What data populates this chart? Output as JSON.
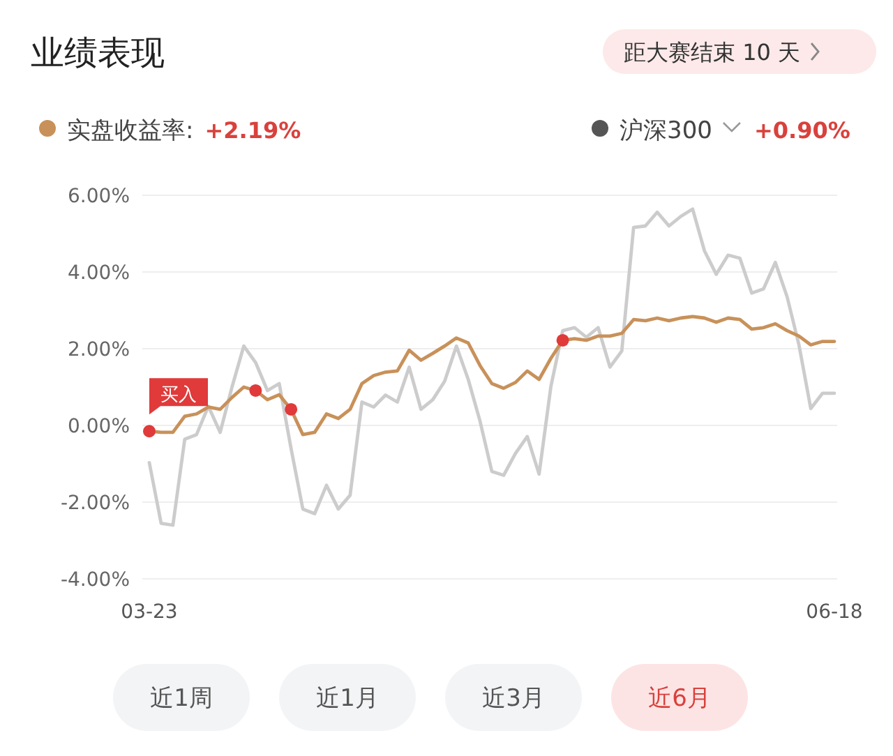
{
  "chart_data": {
    "type": "line",
    "title": "业绩表现",
    "categories": [
      "03-23",
      null,
      null,
      null,
      null,
      null,
      null,
      null,
      null,
      null,
      null,
      null,
      null,
      null,
      null,
      null,
      null,
      null,
      null,
      null,
      null,
      null,
      null,
      null,
      null,
      null,
      null,
      null,
      null,
      null,
      null,
      null,
      null,
      null,
      null,
      null,
      null,
      null,
      null,
      null,
      null,
      null,
      null,
      null,
      null,
      null,
      null,
      null,
      null,
      null,
      null,
      null,
      null,
      null,
      null,
      null,
      null,
      null,
      "06-18"
    ],
    "series": [
      {
        "name": "实盘收益率:",
        "color": "#c8915a",
        "values": [
          -0.15,
          -0.18,
          -0.18,
          0.24,
          0.3,
          0.48,
          0.42,
          0.73,
          1.0,
          0.91,
          0.67,
          0.8,
          0.42,
          -0.24,
          -0.18,
          0.3,
          0.18,
          0.42,
          1.09,
          1.3,
          1.39,
          1.42,
          1.96,
          1.7,
          1.88,
          2.07,
          2.28,
          2.15,
          1.56,
          1.09,
          0.97,
          1.12,
          1.42,
          1.2,
          1.75,
          2.22,
          2.26,
          2.22,
          2.33,
          2.33,
          2.4,
          2.76,
          2.73,
          2.8,
          2.73,
          2.8,
          2.84,
          2.8,
          2.69,
          2.8,
          2.76,
          2.51,
          2.55,
          2.65,
          2.47,
          2.33,
          2.1,
          2.19,
          2.19
        ]
      },
      {
        "name": "沪深300",
        "color": "#cccccc",
        "values": [
          -0.97,
          -2.55,
          -2.6,
          -0.36,
          -0.24,
          0.5,
          -0.18,
          1.0,
          2.07,
          1.64,
          0.91,
          1.09,
          -0.6,
          -2.18,
          -2.3,
          -1.56,
          -2.18,
          -1.82,
          0.61,
          0.48,
          0.79,
          0.61,
          1.52,
          0.42,
          0.67,
          1.15,
          2.07,
          1.2,
          0.11,
          -1.2,
          -1.3,
          -0.73,
          -0.29,
          -1.27,
          1.02,
          2.47,
          2.55,
          2.3,
          2.55,
          1.52,
          1.94,
          5.16,
          5.2,
          5.56,
          5.2,
          5.45,
          5.64,
          4.55,
          3.94,
          4.44,
          4.36,
          3.45,
          3.56,
          4.25,
          3.35,
          2.1,
          0.44,
          0.84,
          0.84
        ]
      },
      {
        "type": "scatter",
        "color": "#e03a3a",
        "marker": "circle",
        "values": [
          -0.15,
          null,
          null,
          null,
          null,
          null,
          null,
          null,
          null,
          0.91,
          null,
          null,
          0.42,
          null,
          null,
          null,
          null,
          null,
          null,
          null,
          null,
          null,
          null,
          null,
          null,
          null,
          null,
          null,
          null,
          null,
          null,
          null,
          null,
          null,
          null,
          2.22,
          null,
          null,
          null,
          null,
          null,
          null,
          null,
          null,
          null,
          null,
          null,
          null,
          null,
          null,
          null,
          null,
          null,
          null,
          null,
          null,
          null,
          null,
          null
        ]
      }
    ],
    "ylim": [
      -4,
      6
    ],
    "yticks": [
      {
        "value": -4,
        "label": "-4.00%"
      },
      {
        "value": -2,
        "label": "-2.00%"
      },
      {
        "value": 0,
        "label": "0.00%"
      },
      {
        "value": 2,
        "label": "2.00%"
      },
      {
        "value": 4,
        "label": "4.00%"
      },
      {
        "value": 6,
        "label": "6.00%"
      }
    ],
    "grid": "y",
    "legend": "top",
    "annotations": [
      "距大赛结束 10 天",
      "+2.19%",
      "+0.90%",
      "近1周",
      "近1月",
      "近3月",
      "近6月",
      {
        "text": "买入",
        "x": "03-23",
        "y": -0.15
      }
    ]
  }
}
